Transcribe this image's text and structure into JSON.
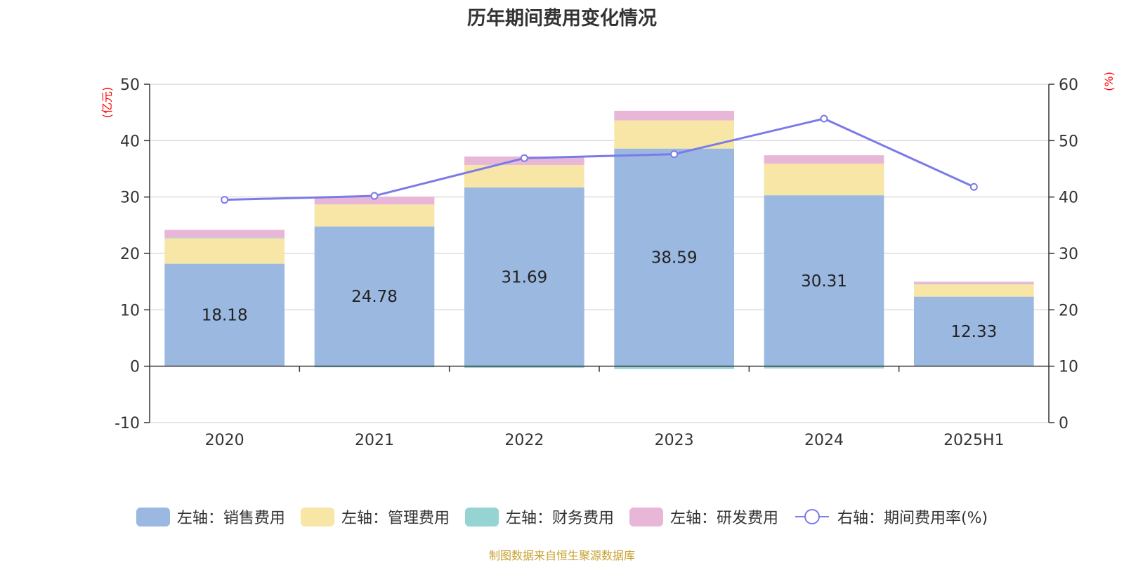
{
  "title": "历年期间费用变化情况",
  "source_note": "制图数据来自恒生聚源数据库",
  "chart_data": {
    "type": "bar",
    "title": "历年期间费用变化情况",
    "categories": [
      "2020",
      "2021",
      "2022",
      "2023",
      "2024",
      "2025H1"
    ],
    "y_left_unit": "(亿元)",
    "y_right_unit": "(%)",
    "y_left_lim": [
      -10,
      50
    ],
    "y_left_ticks": [
      -10,
      0,
      10,
      20,
      30,
      40,
      50
    ],
    "y_right_lim": [
      0,
      60
    ],
    "y_right_ticks": [
      0,
      10,
      20,
      30,
      40,
      50,
      60
    ],
    "grid": true,
    "legend_position": "bottom",
    "series": [
      {
        "name": "左轴：销售费用",
        "axis": "left",
        "kind": "bar",
        "color": "#9bb8e0",
        "values": [
          18.18,
          24.78,
          31.69,
          38.59,
          30.31,
          12.33
        ],
        "labels_shown": true
      },
      {
        "name": "左轴：管理费用",
        "axis": "left",
        "kind": "bar",
        "color": "#f7e6a6",
        "values": [
          4.5,
          3.9,
          4.0,
          5.0,
          5.6,
          2.2
        ]
      },
      {
        "name": "左轴：财务费用",
        "axis": "left",
        "kind": "bar",
        "color": "#96d3d3",
        "values": [
          0.1,
          -0.2,
          -0.3,
          -0.5,
          -0.4,
          0.05
        ]
      },
      {
        "name": "左轴：研发费用",
        "axis": "left",
        "kind": "bar",
        "color": "#e8b7d8",
        "values": [
          1.4,
          1.4,
          1.5,
          1.7,
          1.5,
          0.4
        ]
      },
      {
        "name": "右轴：期间费用率(%)",
        "axis": "right",
        "kind": "line",
        "color": "#7b7be8",
        "values": [
          39.5,
          40.2,
          46.9,
          47.6,
          53.9,
          41.8
        ]
      }
    ]
  }
}
